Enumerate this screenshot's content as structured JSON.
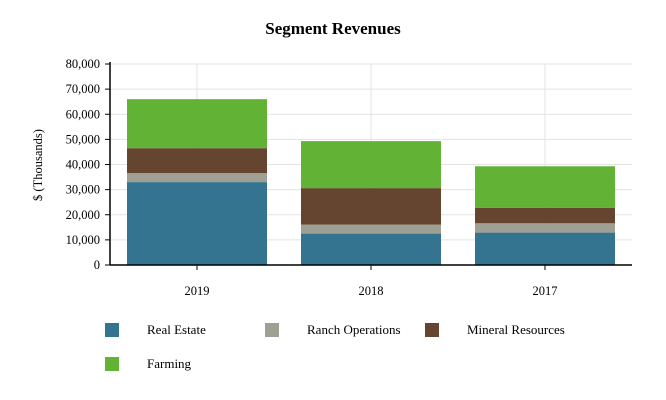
{
  "chart_data": {
    "type": "bar",
    "stacked": true,
    "title": "Segment Revenues",
    "xlabel": "",
    "ylabel": "$ (Thousands)",
    "ylim": [
      0,
      80000
    ],
    "yticks": [
      "0",
      "10,000",
      "20,000",
      "30,000",
      "40,000",
      "50,000",
      "60,000",
      "70,000",
      "80,000"
    ],
    "grid": true,
    "legend_placement": "bottom",
    "categories": [
      "2019",
      "2018",
      "2017"
    ],
    "series": [
      {
        "name": "Real Estate",
        "color": "#347490",
        "values": [
          33000,
          12500,
          12900
        ]
      },
      {
        "name": "Ranch Operations",
        "color": "#a09f94",
        "values": [
          3600,
          3600,
          3700
        ]
      },
      {
        "name": "Mineral Resources",
        "color": "#654530",
        "values": [
          9900,
          14500,
          6200
        ]
      },
      {
        "name": "Farming",
        "color": "#62b236",
        "values": [
          19500,
          18700,
          16500
        ]
      }
    ]
  }
}
